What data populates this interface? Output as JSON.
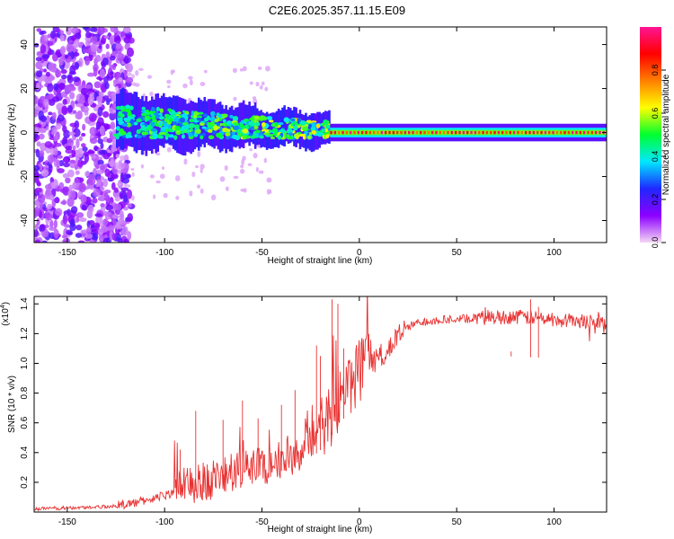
{
  "title": "C2E6.2025.357.11.15.E09",
  "colors": {
    "snr_line": "#e83232",
    "axis": "#000000",
    "background": "#ffffff"
  },
  "chart_data": [
    {
      "type": "heatmap",
      "name": "spectrogram",
      "xlabel": "Height of straight line (km)",
      "ylabel": "Frequency (Hz)",
      "xlim": [
        -167,
        127
      ],
      "ylim": [
        -50,
        48
      ],
      "xticks": [
        -150,
        -100,
        -50,
        0,
        50,
        100
      ],
      "yticks": [
        -40,
        -20,
        0,
        20,
        40
      ],
      "colorbar": {
        "label": "Normalized spectral amplitude",
        "range": [
          0,
          1
        ],
        "ticks": [
          "0.0",
          "0.2",
          "0.4",
          "0.6",
          "0.8"
        ],
        "colormap": [
          "#f5d7f5",
          "#8c00ff",
          "#1f28ff",
          "#00e8ff",
          "#00ff30",
          "#ffff00",
          "#ff8000",
          "#ff0000",
          "#ff1493"
        ]
      },
      "description_bands": [
        {
          "x_range": [
            -167,
            -125
          ],
          "freq_spread": 48,
          "amplitude": 0.15,
          "pattern": "scattered noise"
        },
        {
          "x_range": [
            -125,
            -15
          ],
          "freq_spread": 12,
          "amplitude": 0.45,
          "pattern": "broad band near 0 Hz"
        },
        {
          "x_range": [
            -15,
            127
          ],
          "freq_spread": 3,
          "amplitude": 0.9,
          "pattern": "narrow line near 0 Hz"
        }
      ]
    },
    {
      "type": "line",
      "name": "snr",
      "xlabel": "Height of straight line (km)",
      "ylabel": "SNR (10 * v/v)",
      "yscale_label": "(x10",
      "yscale_exp": "4",
      "xlim": [
        -167,
        127
      ],
      "ylim": [
        0,
        1.45
      ],
      "xticks": [
        -150,
        -100,
        -50,
        0,
        50,
        100
      ],
      "yticks": [
        "0.2",
        "0.4",
        "0.6",
        "0.8",
        "1.0",
        "1.2",
        "1.4"
      ],
      "series": [
        {
          "name": "SNR",
          "trend_x": [
            -167,
            -140,
            -125,
            -115,
            -105,
            -95,
            -85,
            -75,
            -65,
            -55,
            -45,
            -35,
            -25,
            -18,
            -12,
            -5,
            0,
            5,
            10,
            15,
            20,
            25,
            30,
            40,
            60,
            80,
            90,
            100,
            127
          ],
          "trend_y": [
            0.02,
            0.03,
            0.04,
            0.06,
            0.09,
            0.13,
            0.17,
            0.21,
            0.24,
            0.28,
            0.32,
            0.37,
            0.45,
            0.55,
            0.7,
            0.85,
            0.93,
            0.98,
            1.03,
            1.09,
            1.17,
            1.24,
            1.27,
            1.29,
            1.3,
            1.31,
            1.3,
            1.29,
            1.27
          ],
          "spikes": [
            {
              "x": -92,
              "y": 0.42
            },
            {
              "x": -84,
              "y": 0.68
            },
            {
              "x": -70,
              "y": 0.62
            },
            {
              "x": -60,
              "y": 0.75
            },
            {
              "x": -52,
              "y": 0.63
            },
            {
              "x": -40,
              "y": 0.72
            },
            {
              "x": -33,
              "y": 0.82
            },
            {
              "x": -22,
              "y": 1.12
            },
            {
              "x": -20,
              "y": 1.05
            },
            {
              "x": -14,
              "y": 1.43
            },
            {
              "x": -11,
              "y": 1.4
            },
            {
              "x": -8,
              "y": 1.1
            },
            {
              "x": 88,
              "y": 1.43
            },
            {
              "x": 92,
              "y": 1.38
            },
            {
              "x": 78,
              "y": 1.08
            }
          ]
        }
      ]
    }
  ]
}
